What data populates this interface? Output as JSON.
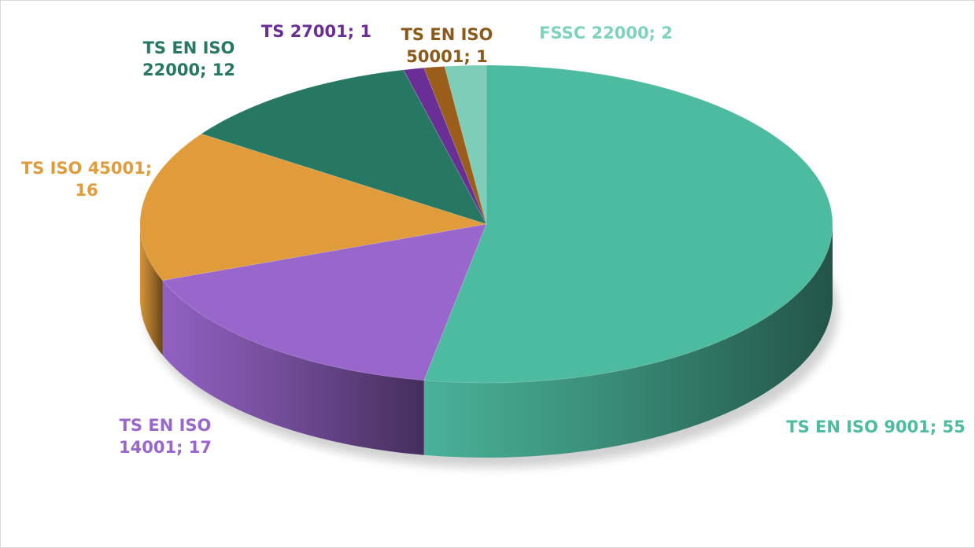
{
  "chart_data": {
    "type": "pie",
    "values": [
      55,
      17,
      16,
      12,
      1,
      1,
      2
    ],
    "value_labels": [
      "TS EN ISO 9001; 55",
      "TS EN ISO 14001; 17",
      "TS ISO 45001; 16",
      "TS EN ISO 22000; 12",
      "TS 27001; 1",
      "TS EN ISO 50001; 1",
      "FSSC 22000; 2"
    ],
    "colors": [
      "#4dbba0",
      "#9966cc",
      "#e09b3a",
      "#277863",
      "#6a2f96",
      "#9a5d1a",
      "#7dcdb8"
    ]
  }
}
